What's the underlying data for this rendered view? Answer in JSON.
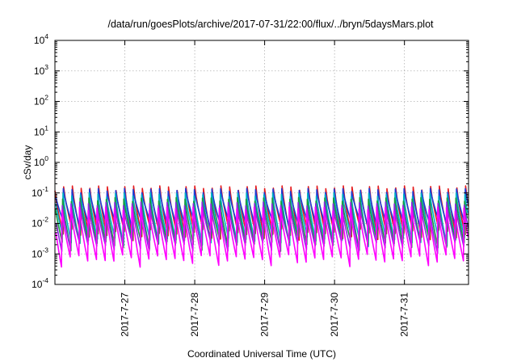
{
  "chart_data": {
    "type": "line",
    "title": "/data/run/goesPlots/archive/2017-07-31/22:00/flux/../bryn/5daysMars.plot",
    "xlabel": "Coordinated Universal Time (UTC)",
    "ylabel": "cSv/day",
    "yscale": "log",
    "ylim": [
      0.0001,
      10000
    ],
    "y_ticks": [
      {
        "base": "10",
        "exp": "-4",
        "value": 0.0001
      },
      {
        "base": "10",
        "exp": "-3",
        "value": 0.001
      },
      {
        "base": "10",
        "exp": "-2",
        "value": 0.01
      },
      {
        "base": "10",
        "exp": "-1",
        "value": 0.1
      },
      {
        "base": "10",
        "exp": "0",
        "value": 1
      },
      {
        "base": "10",
        "exp": "1",
        "value": 10
      },
      {
        "base": "10",
        "exp": "2",
        "value": 100
      },
      {
        "base": "10",
        "exp": "3",
        "value": 1000
      },
      {
        "base": "10",
        "exp": "4",
        "value": 10000
      }
    ],
    "xlim": [
      "2017-07-26T00:00",
      "2017-07-31T22:00"
    ],
    "x_ticks": [
      "2017-7-27",
      "2017-7-28",
      "2017-7-29",
      "2017-7-30",
      "2017-7-31"
    ],
    "grid": true,
    "sawtooth_period_hours": 3,
    "series": [
      {
        "color": "#e41a1c",
        "peak": 0.17,
        "trough": 0.006
      },
      {
        "color": "#1c3fd6",
        "peak": 0.14,
        "trough": 0.012
      },
      {
        "color": "#00b3c4",
        "peak": 0.1,
        "trough": 0.004
      },
      {
        "color": "#1a9a3e",
        "peak": 0.07,
        "trough": 0.003
      },
      {
        "color": "#8a2be2",
        "peak": 0.05,
        "trough": 0.0025
      },
      {
        "color": "#ff00ff",
        "peak": 0.035,
        "trough": 0.0009
      }
    ]
  }
}
